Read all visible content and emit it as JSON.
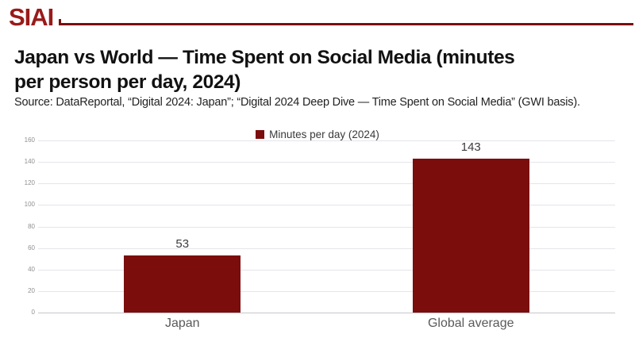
{
  "header": {
    "logo_text": "SIAI"
  },
  "title": {
    "lines": [
      "Japan vs World — Time Spent on Social Media (minutes",
      "per person per day, 2024)"
    ]
  },
  "source": {
    "text": "Source: DataReportal, “Digital 2024: Japan”; “Digital 2024 Deep Dive — Time Spent on Social Media” (GWI basis)."
  },
  "legend": {
    "label": "Minutes per day (2024)",
    "swatch_color": "#7B0D0D"
  },
  "chart_data": {
    "type": "bar",
    "title": "Japan vs World — Time Spent on Social Media (minutes per person per day, 2024)",
    "categories": [
      "Japan",
      "Global average"
    ],
    "series": [
      {
        "name": "Minutes per day (2024)",
        "values": [
          53,
          143
        ]
      }
    ],
    "value_labels": [
      "53",
      "143"
    ],
    "xlabel": "",
    "ylabel": "",
    "ylim": [
      0,
      160
    ],
    "ytick_step": 20,
    "grid": true,
    "legend_position": "top-center",
    "bar_color": "#7B0D0D"
  },
  "colors": {
    "accent": "#7B0D0D",
    "logo": "#9A1A1A",
    "gridline": "#E4E4EC",
    "axis_line": "#C6C6CC",
    "tick_text": "#909090",
    "category_text": "#5A5A5A",
    "value_text": "#3D3D3D"
  }
}
